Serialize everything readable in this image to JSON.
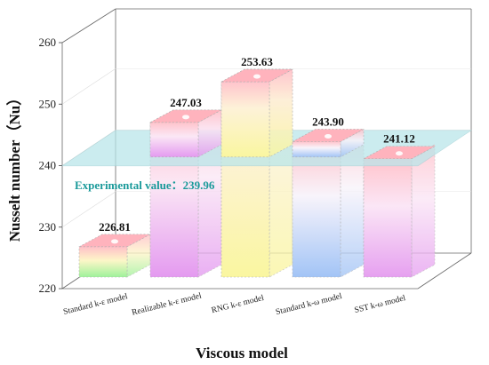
{
  "chart_data": {
    "type": "bar",
    "categories": [
      "Standard k-ε model",
      "Realizable k-ε model",
      "RNG k-ε model",
      "Standard k-ω model",
      "SST k-ω model"
    ],
    "values": [
      226.81,
      247.03,
      253.63,
      243.9,
      241.12
    ],
    "value_labels": [
      "226.81",
      "247.03",
      "253.63",
      "243.90",
      "241.12"
    ],
    "xlabel": "Viscous model",
    "ylabel": "Nusselt number（Nu）",
    "ylim": [
      220,
      260
    ],
    "yticks": [
      220,
      230,
      240,
      250,
      260
    ],
    "reference_line": {
      "value": 239.96,
      "label": "Experimental value：239.96"
    },
    "grid": true,
    "style": "3d-bars",
    "colors": {
      "top": "#ffb6c1",
      "bar_pink": "#fcd0e6",
      "bar_yellow": "#fbf7a8",
      "bar_blue": "#a9c9f5",
      "bar_violet": "#e7a8f0",
      "bar_green": "#a8f0a0",
      "plane": "#b8e6ea"
    }
  }
}
